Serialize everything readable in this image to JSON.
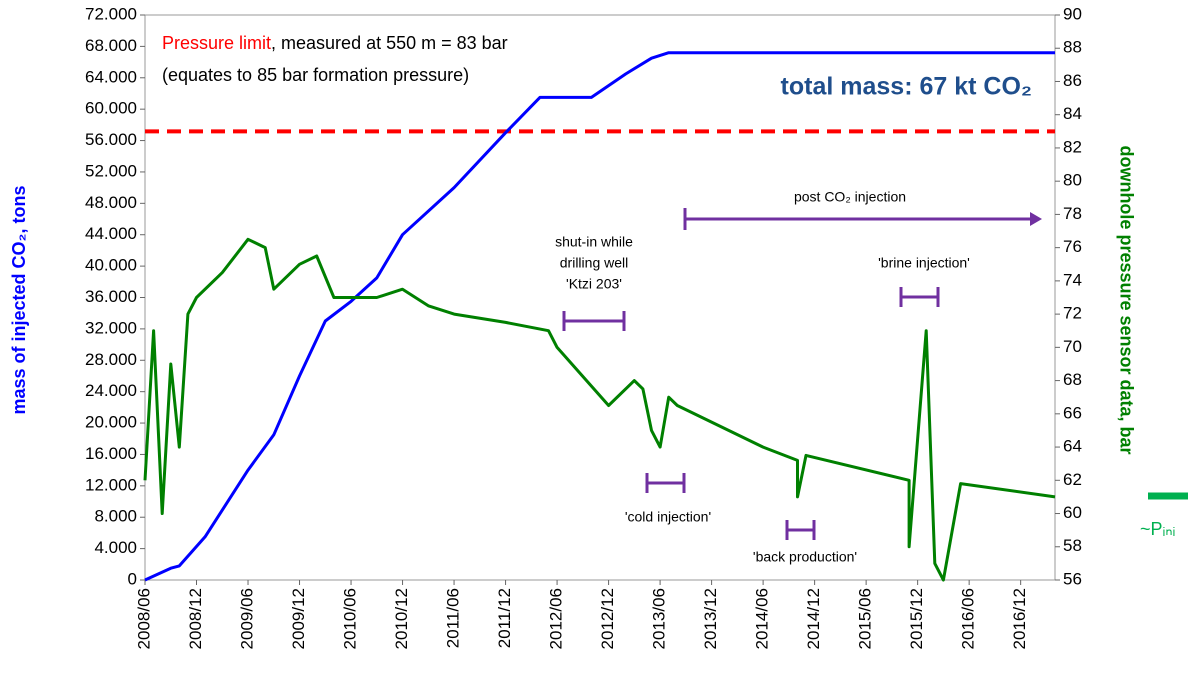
{
  "chart_data": {
    "type": "line",
    "title": "total mass: 67 kt CO₂",
    "ylabel": "mass of injected CO₂, tons",
    "y2label": "downhole pressure sensor data, bar",
    "initial_pressure_label": "~Pᵢₙᵢ",
    "xlim": [
      "2008/06",
      "2017/04"
    ],
    "xticks": [
      "2008/06",
      "2008/12",
      "2009/06",
      "2009/12",
      "2010/06",
      "2010/12",
      "2011/06",
      "2011/12",
      "2012/06",
      "2012/12",
      "2013/06",
      "2013/12",
      "2014/06",
      "2014/12",
      "2015/06",
      "2015/12",
      "2016/06",
      "2016/12"
    ],
    "ylim": [
      0,
      72000
    ],
    "yticks": [
      0,
      {
        "value": 4000,
        "label": "4.000"
      },
      {
        "value": 8000,
        "label": "8.000"
      },
      {
        "value": 12000,
        "label": "12.000"
      },
      {
        "value": 16000,
        "label": "16.000"
      },
      {
        "value": 20000,
        "label": "20.000"
      },
      {
        "value": 24000,
        "label": "24.000"
      },
      {
        "value": 28000,
        "label": "28.000"
      },
      {
        "value": 32000,
        "label": "32.000"
      },
      {
        "value": 36000,
        "label": "36.000"
      },
      {
        "value": 40000,
        "label": "40.000"
      },
      {
        "value": 44000,
        "label": "44.000"
      },
      {
        "value": 48000,
        "label": "48.000"
      },
      {
        "value": 52000,
        "label": "52.000"
      },
      {
        "value": 56000,
        "label": "56.000"
      },
      {
        "value": 60000,
        "label": "60.000"
      },
      {
        "value": 64000,
        "label": "64.000"
      },
      {
        "value": 68000,
        "label": "68.000"
      },
      {
        "value": 72000,
        "label": "72.000"
      }
    ],
    "y2lim": [
      56,
      90
    ],
    "y2ticks": [
      56,
      58,
      60,
      62,
      64,
      66,
      68,
      70,
      72,
      74,
      76,
      78,
      80,
      82,
      84,
      86,
      88,
      90
    ],
    "series": [
      {
        "name": "mass of injected CO₂",
        "color": "#0000ff",
        "x": [
          "2008/06",
          "2008/09",
          "2008/10",
          "2009/01",
          "2009/06",
          "2009/09",
          "2009/12",
          "2010/03",
          "2010/06",
          "2010/09",
          "2010/12",
          "2011/06",
          "2011/12",
          "2012/04",
          "2012/10",
          "2013/02",
          "2013/05",
          "2013/07",
          "2017/04"
        ],
        "values": [
          0,
          1500,
          1800,
          5500,
          14000,
          18500,
          26000,
          33000,
          35500,
          38500,
          44000,
          50000,
          57000,
          61500,
          61500,
          64500,
          66500,
          67200,
          67200
        ]
      },
      {
        "name": "downhole pressure",
        "color": "#008000",
        "axis": "y2",
        "x": [
          "2008/06",
          "2008/07",
          "2008/08",
          "2008/09",
          "2008/10",
          "2008/11",
          "2008/12",
          "2009/03",
          "2009/06",
          "2009/08",
          "2009/09",
          "2009/12",
          "2010/02",
          "2010/04",
          "2010/06",
          "2010/09",
          "2010/12",
          "2011/03",
          "2011/06",
          "2011/12",
          "2012/05",
          "2012/06",
          "2012/12",
          "2013/03",
          "2013/04",
          "2013/05",
          "2013/06",
          "2013/07",
          "2013/08",
          "2014/06",
          "2014/10",
          "2014/10",
          "2014/11",
          "2015/11",
          "2015/11",
          "2016/01",
          "2016/02",
          "2016/03",
          "2016/05",
          "2017/04"
        ],
        "values": [
          62,
          71,
          60,
          69,
          64,
          72,
          73,
          74.5,
          76.5,
          76,
          73.5,
          75,
          75.5,
          73,
          73,
          73,
          73.5,
          72.5,
          72,
          71.5,
          71,
          70,
          66.5,
          68,
          67.5,
          65,
          64,
          67,
          66.5,
          64,
          63.2,
          61,
          63.5,
          62,
          58,
          71,
          57,
          56,
          61.8,
          61
        ]
      }
    ],
    "reference_line": {
      "axis": "y2",
      "value": 83,
      "color": "#ff0000"
    },
    "annotations": {
      "pressure_limit": "Pressure limit",
      "pressure_limit_rest": ", measured at 550 m = 83 bar",
      "formation": "(equates to 85 bar formation pressure)",
      "shut_in": [
        "shut-in while",
        "drilling well",
        "'Ktzi 203'"
      ],
      "post": "post CO₂ injection",
      "brine": "'brine injection'",
      "cold": "'cold injection'",
      "back": "'back production'"
    }
  }
}
